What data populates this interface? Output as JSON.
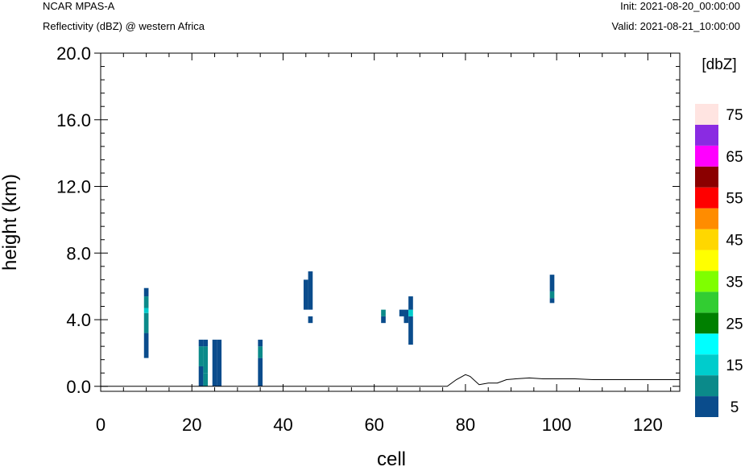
{
  "header": {
    "model": "NCAR MPAS-A",
    "field": "Reflectivity (dBZ) @ western Africa",
    "init": "Init: 2021-08-20_00:00:00",
    "valid": "Valid: 2021-08-21_10:00:00"
  },
  "chart_data": {
    "type": "heatmap",
    "xlabel": "cell",
    "ylabel": "height (km)",
    "xlim": [
      0,
      127
    ],
    "ylim": [
      -0.3,
      20.0
    ],
    "x_ticks": [
      "0",
      "20",
      "40",
      "60",
      "80",
      "100",
      "120"
    ],
    "y_ticks": [
      "0.0",
      "4.0",
      "8.0",
      "12.0",
      "16.0",
      "20.0"
    ],
    "colorbar": {
      "title": "[dbZ]",
      "tick_labels": [
        "5",
        "15",
        "25",
        "35",
        "45",
        "55",
        "65",
        "75"
      ],
      "levels": [
        5,
        10,
        15,
        20,
        25,
        30,
        35,
        40,
        45,
        50,
        55,
        60,
        65,
        70,
        75
      ],
      "colors": [
        "#0a4c8c",
        "#0b8a8a",
        "#00cccc",
        "#00ffff",
        "#008000",
        "#32cd32",
        "#7fff00",
        "#ffff00",
        "#ffd700",
        "#ff8c00",
        "#ff0000",
        "#8b0000",
        "#ff00ff",
        "#8a2be2",
        "#ffe4e1"
      ]
    },
    "cells": [
      {
        "x": 10,
        "y0": 1.7,
        "y1": 3.2,
        "dbz": 5
      },
      {
        "x": 10,
        "y0": 3.2,
        "y1": 4.4,
        "dbz": 10
      },
      {
        "x": 10,
        "y0": 4.4,
        "y1": 4.7,
        "dbz": 15
      },
      {
        "x": 10,
        "y0": 4.7,
        "y1": 5.4,
        "dbz": 10
      },
      {
        "x": 10,
        "y0": 5.4,
        "y1": 5.9,
        "dbz": 5
      },
      {
        "x": 22,
        "y0": 0.0,
        "y1": 1.2,
        "dbz": 5
      },
      {
        "x": 22,
        "y0": 1.2,
        "y1": 2.4,
        "dbz": 10
      },
      {
        "x": 22,
        "y0": 2.4,
        "y1": 2.8,
        "dbz": 5
      },
      {
        "x": 23,
        "y0": 0.0,
        "y1": 0.8,
        "dbz": 10
      },
      {
        "x": 23,
        "y0": 0.8,
        "y1": 2.4,
        "dbz": 10
      },
      {
        "x": 23,
        "y0": 2.4,
        "y1": 2.8,
        "dbz": 5
      },
      {
        "x": 25,
        "y0": 0.0,
        "y1": 2.8,
        "dbz": 5
      },
      {
        "x": 26,
        "y0": 0.0,
        "y1": 2.8,
        "dbz": 5
      },
      {
        "x": 35,
        "y0": 0.0,
        "y1": 1.7,
        "dbz": 5
      },
      {
        "x": 35,
        "y0": 1.7,
        "y1": 2.4,
        "dbz": 10
      },
      {
        "x": 35,
        "y0": 2.4,
        "y1": 2.8,
        "dbz": 5
      },
      {
        "x": 45,
        "y0": 4.6,
        "y1": 6.4,
        "dbz": 5
      },
      {
        "x": 46,
        "y0": 4.6,
        "y1": 6.9,
        "dbz": 5
      },
      {
        "x": 46,
        "y0": 3.8,
        "y1": 4.2,
        "dbz": 5
      },
      {
        "x": 62,
        "y0": 3.8,
        "y1": 4.2,
        "dbz": 5
      },
      {
        "x": 62,
        "y0": 4.2,
        "y1": 4.6,
        "dbz": 10
      },
      {
        "x": 66,
        "y0": 4.2,
        "y1": 4.6,
        "dbz": 5
      },
      {
        "x": 67,
        "y0": 3.8,
        "y1": 4.6,
        "dbz": 5
      },
      {
        "x": 68,
        "y0": 2.5,
        "y1": 4.2,
        "dbz": 5
      },
      {
        "x": 68,
        "y0": 4.2,
        "y1": 4.6,
        "dbz": 15
      },
      {
        "x": 68,
        "y0": 4.6,
        "y1": 5.4,
        "dbz": 5
      },
      {
        "x": 99,
        "y0": 5.0,
        "y1": 5.3,
        "dbz": 5
      },
      {
        "x": 99,
        "y0": 5.3,
        "y1": 5.7,
        "dbz": 10
      },
      {
        "x": 99,
        "y0": 5.7,
        "y1": 6.7,
        "dbz": 5
      }
    ],
    "terrain": [
      [
        0,
        0.0
      ],
      [
        76,
        0.0
      ],
      [
        78,
        0.4
      ],
      [
        80,
        0.7
      ],
      [
        81,
        0.6
      ],
      [
        83,
        0.1
      ],
      [
        85,
        0.2
      ],
      [
        87,
        0.2
      ],
      [
        89,
        0.4
      ],
      [
        91,
        0.45
      ],
      [
        94,
        0.5
      ],
      [
        97,
        0.45
      ],
      [
        100,
        0.45
      ],
      [
        104,
        0.45
      ],
      [
        108,
        0.4
      ],
      [
        112,
        0.4
      ],
      [
        116,
        0.4
      ],
      [
        120,
        0.4
      ],
      [
        124,
        0.4
      ],
      [
        127,
        0.4
      ]
    ]
  }
}
